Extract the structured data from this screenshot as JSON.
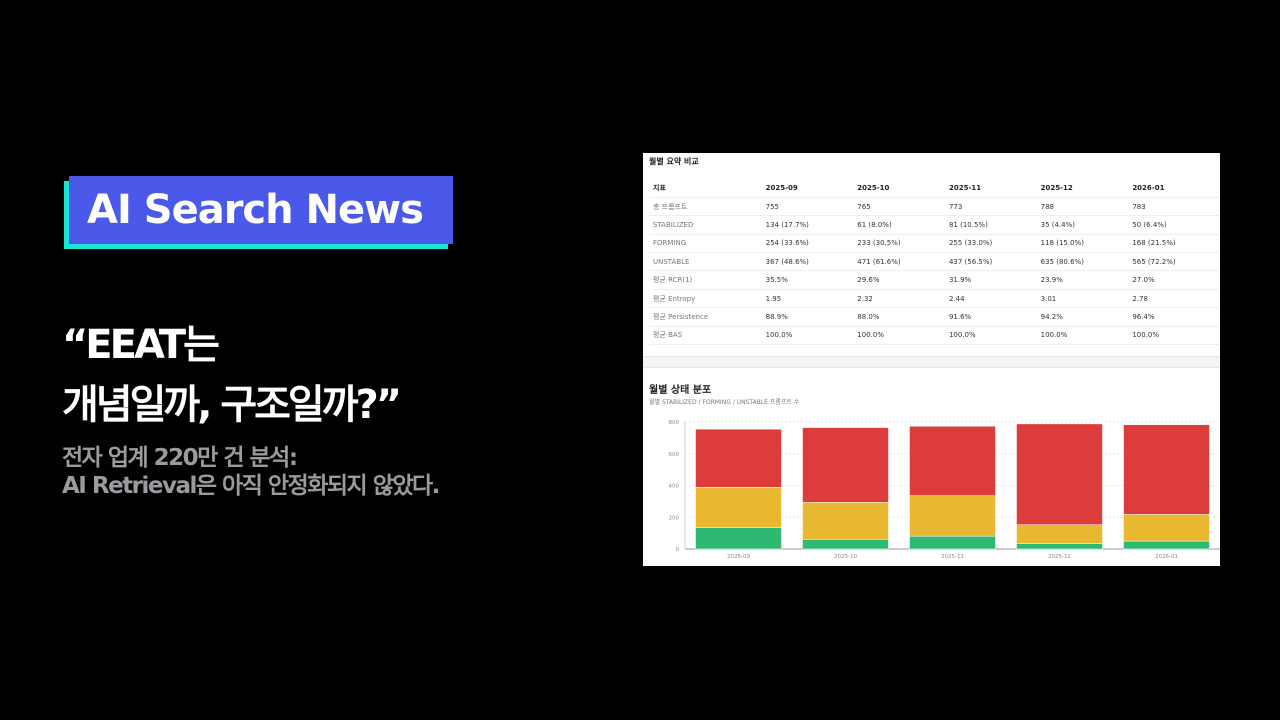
{
  "badge": "AI Search News",
  "headline": {
    "line1": "“EEAT는",
    "line2": "개념일까, 구조일까?”"
  },
  "subtitle": {
    "line1": "전자 업계 220만 건 분석:",
    "line2": " AI Retrieval은 아직 안정화되지 않았다."
  },
  "table": {
    "title": "월별 요약 비교",
    "headers": [
      "지표",
      "2025-09",
      "2025-10",
      "2025-11",
      "2025-12",
      "2026-01"
    ],
    "rows": [
      [
        "총 프롬프트",
        "755",
        "765",
        "773",
        "788",
        "783"
      ],
      [
        "STABILIZED",
        "134 (17.7%)",
        "61 (8.0%)",
        "81 (10.5%)",
        "35 (4.4%)",
        "50 (6.4%)"
      ],
      [
        "FORMING",
        "254 (33.6%)",
        "233 (30.5%)",
        "255 (33.0%)",
        "118 (15.0%)",
        "168 (21.5%)"
      ],
      [
        "UNSTABLE",
        "367 (48.6%)",
        "471 (61.6%)",
        "437 (56.5%)",
        "635 (80.6%)",
        "565 (72.2%)"
      ],
      [
        "평균 RCR(1)",
        "35.5%",
        "29.6%",
        "31.9%",
        "23.9%",
        "27.0%"
      ],
      [
        "평균 Entropy",
        "1.95",
        "2.32",
        "2.44",
        "3.01",
        "2.78"
      ],
      [
        "평균 Persistence",
        "88.9%",
        "88.0%",
        "91.6%",
        "94.2%",
        "96.4%"
      ],
      [
        "평균 BAS",
        "100.0%",
        "100.0%",
        "100.0%",
        "100.0%",
        "100.0%"
      ]
    ]
  },
  "chart_data": {
    "type": "bar",
    "stacked": true,
    "title": "월별 상태 분포",
    "subtitle": "월별 STABILIZED / FORMING / UNSTABLE 프롬프트 수",
    "categories": [
      "2025-09",
      "2025-10",
      "2025-11",
      "2025-12",
      "2026-01"
    ],
    "series": [
      {
        "key": "STABILIZED",
        "values": [
          134,
          61,
          81,
          35,
          50
        ],
        "color": "#2eb872"
      },
      {
        "key": "FORMING",
        "values": [
          254,
          233,
          255,
          118,
          168
        ],
        "color": "#e8b830"
      },
      {
        "key": "UNSTABLE",
        "values": [
          367,
          471,
          437,
          635,
          565
        ],
        "color": "#dc3c3c"
      }
    ],
    "ylim": [
      0,
      800
    ],
    "yticks": [
      "0",
      "200",
      "400",
      "600",
      "800"
    ],
    "grid": true
  }
}
